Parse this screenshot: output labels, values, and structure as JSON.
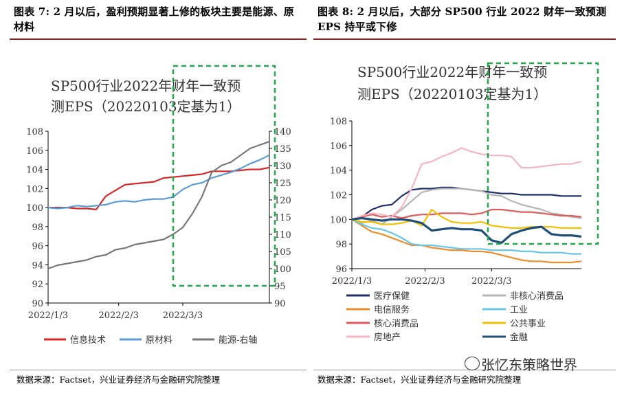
{
  "left_panel": {
    "figure_title": "图表 7:  2 月以后，盈利预期显著上修的板块主要是能源、原材料",
    "source": "数据来源：Factset，兴业证券经济与金融研究院整理"
  },
  "right_panel": {
    "figure_title": "图表 8:  2 月以后，大部分 SP500 行业 2022 财年一致预测 EPS 持平或下修",
    "source": "数据来源：Factset，兴业证券经济与金融研究院整理"
  },
  "watermark": "张忆东策略世界",
  "colors": {
    "highlight_box": "#22a84a",
    "title_rule": "#8a1f1f"
  },
  "chart_data": [
    {
      "type": "line",
      "title_line1": "SP500行业2022年财年一致预",
      "title_line2": "测EPS（20220103定基为1）",
      "x": [
        0,
        3,
        6,
        9,
        12,
        15,
        18,
        21,
        24,
        27,
        30,
        33,
        36,
        39,
        42,
        45,
        48,
        51,
        54,
        57,
        60,
        63,
        66,
        69
      ],
      "xtick_labels": [
        "2022/1/3",
        "2022/2/3",
        "2022/3/3"
      ],
      "xtick_positions": [
        0,
        22,
        42
      ],
      "xlim": [
        0,
        69
      ],
      "ylim": [
        90,
        108
      ],
      "yticks": [
        90,
        92,
        94,
        96,
        98,
        100,
        102,
        104,
        106,
        108
      ],
      "y2lim": [
        90,
        140
      ],
      "y2ticks": [
        90,
        95,
        100,
        105,
        110,
        115,
        120,
        125,
        130,
        135,
        140
      ],
      "series": [
        {
          "name": "信息技术",
          "axis": "left",
          "color": "#d62728",
          "values": [
            100,
            100,
            100,
            99.9,
            99.9,
            99.8,
            101.2,
            101.8,
            102.4,
            102.5,
            102.6,
            102.7,
            103.1,
            103.2,
            103.3,
            103.4,
            103.5,
            103.8,
            103.8,
            103.8,
            103.9,
            104.0,
            104.0,
            104.2
          ]
        },
        {
          "name": "原材料",
          "axis": "left",
          "color": "#5b9bd5",
          "values": [
            100,
            99.9,
            100,
            100.2,
            100.1,
            100.2,
            100.3,
            100.6,
            100.7,
            100.6,
            100.8,
            100.9,
            100.9,
            101.1,
            101.9,
            102.4,
            102.6,
            103.1,
            103.4,
            103.7,
            104.1,
            104.6,
            105.0,
            105.5
          ]
        },
        {
          "name": "能源-右轴",
          "axis": "right",
          "color": "#777777",
          "values": [
            100,
            101,
            101.5,
            102,
            102.5,
            103.5,
            104,
            105.5,
            106,
            107,
            107.5,
            108,
            108.5,
            110,
            112,
            116,
            121,
            128,
            130,
            131,
            133,
            135,
            136,
            137
          ]
        }
      ],
      "legend": [
        "信息技术",
        "原材料",
        "能源-右轴"
      ],
      "legend_position": "bottom"
    },
    {
      "type": "line",
      "title_line1": "SP500行业2022年财年一致预",
      "title_line2": "测EPS（20220103定基为1）",
      "x": [
        0,
        3,
        6,
        9,
        12,
        15,
        18,
        21,
        24,
        27,
        30,
        33,
        36,
        39,
        42,
        45,
        48,
        51,
        54,
        57,
        60,
        63,
        66,
        69
      ],
      "xtick_labels": [
        "2022/1/3",
        "2022/2/3",
        "2022/3/3"
      ],
      "xtick_positions": [
        0,
        22,
        42
      ],
      "xlim": [
        0,
        69
      ],
      "ylim": [
        96,
        108
      ],
      "yticks": [
        96,
        98,
        100,
        102,
        104,
        106,
        108
      ],
      "series": [
        {
          "name": "医疗保健",
          "color": "#1f2f6b",
          "values": [
            100,
            100.2,
            100.8,
            101.1,
            101.2,
            101.9,
            102.4,
            102.5,
            102.5,
            102.6,
            102.6,
            102.5,
            102.4,
            102.3,
            102.2,
            102.1,
            102.1,
            102.0,
            102.0,
            102.0,
            102.0,
            101.9,
            101.9,
            101.9
          ]
        },
        {
          "name": "非核心消费品",
          "color": "#b5b5b5",
          "values": [
            100,
            99.7,
            99.9,
            99.6,
            100.2,
            100.8,
            101.5,
            102.2,
            102.4,
            102.5,
            102.5,
            102.5,
            102.4,
            102.3,
            102.0,
            101.9,
            101.5,
            101.2,
            101.0,
            100.8,
            100.5,
            100.4,
            100.2,
            100.1
          ]
        },
        {
          "name": "电信服务",
          "color": "#f08c2a",
          "values": [
            100,
            99.5,
            99,
            98.8,
            98.5,
            98.2,
            97.9,
            97.9,
            97.7,
            97.6,
            97.5,
            97.5,
            97.4,
            97.4,
            97.3,
            97.1,
            96.9,
            96.7,
            96.6,
            96.6,
            96.5,
            96.5,
            96.5,
            96.6
          ]
        },
        {
          "name": "工业",
          "color": "#66c7e8",
          "values": [
            100,
            99.6,
            99.3,
            99.2,
            98.9,
            98.5,
            98.0,
            97.9,
            97.9,
            97.8,
            97.7,
            97.6,
            97.6,
            97.6,
            97.5,
            97.5,
            97.5,
            97.4,
            97.4,
            97.3,
            97.3,
            97.3,
            97.2,
            97.2
          ]
        },
        {
          "name": "核心消费品",
          "color": "#e05a5a",
          "values": [
            100,
            100.2,
            100.4,
            100.2,
            100.3,
            100.1,
            100.3,
            100.4,
            100.4,
            100.5,
            100.5,
            100.5,
            100.4,
            100.5,
            100.8,
            100.8,
            100.7,
            100.6,
            100.6,
            100.5,
            100.4,
            100.3,
            100.3,
            100.2
          ]
        },
        {
          "name": "公共事业",
          "color": "#f5c000",
          "values": [
            100,
            99.8,
            99.8,
            99.6,
            99.6,
            99.7,
            99.9,
            99.5,
            100.8,
            100.2,
            99.8,
            99.7,
            99.7,
            99.8,
            99.5,
            99.4,
            99.3,
            99.3,
            99.4,
            99.4,
            99.4,
            99.3,
            99.3,
            99.3
          ]
        },
        {
          "name": "房地产",
          "color": "#f4b6c2",
          "values": [
            100,
            100.3,
            100.5,
            100.4,
            100.2,
            101.0,
            102.5,
            104.5,
            104.7,
            105.1,
            105.4,
            105.8,
            105.5,
            105.3,
            105.2,
            105.2,
            105.1,
            104.2,
            104.2,
            104.3,
            104.4,
            104.5,
            104.5,
            104.7
          ]
        },
        {
          "name": "金融",
          "color": "#1f4e79",
          "values": [
            100,
            100.1,
            100.0,
            99.9,
            100.0,
            100.0,
            99.9,
            99.7,
            99.1,
            99.2,
            99.3,
            99.2,
            99.2,
            99.1,
            98.3,
            98.1,
            98.8,
            99.1,
            99.3,
            99.4,
            98.8,
            98.7,
            98.7,
            98.6
          ]
        }
      ],
      "legend": [
        "医疗保健",
        "非核心消费品",
        "电信服务",
        "工业",
        "核心消费品",
        "公共事业",
        "房地产",
        "金融"
      ],
      "legend_position": "bottom"
    }
  ]
}
